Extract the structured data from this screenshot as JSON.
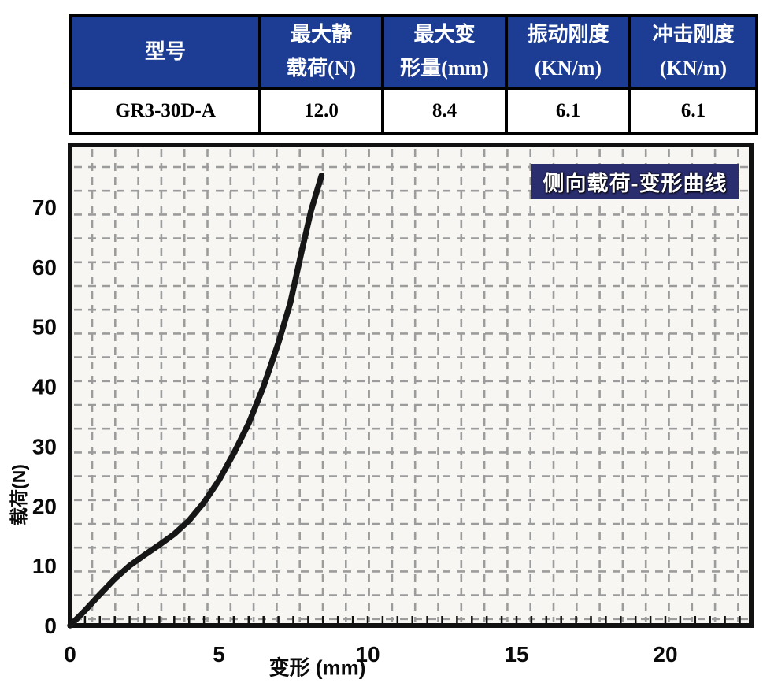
{
  "table": {
    "headers": [
      "型号",
      "最大静\n载荷(N)",
      "最大变\n形量(mm)",
      "振动刚度\n(KN/m)",
      "冲击刚度\n(KN/m)"
    ],
    "row": [
      "GR3-30D-A",
      "12.0",
      "8.4",
      "6.1",
      "6.1"
    ]
  },
  "chart": {
    "badge": "侧向载荷-变形曲线",
    "xlabel": "变形 (mm)",
    "ylabel": "载荷(N)"
  },
  "colors": {
    "table_header_bg": "#1d3d94",
    "table_header_text": "#ffffff",
    "badge_bg": "#2a2d6e",
    "badge_text": "#ffffff",
    "curve": "#161616",
    "grid": "#9c9c9c",
    "plot_bg": "#f7f6f3",
    "border": "#000000"
  },
  "chart_data": {
    "type": "line",
    "title": "侧向载荷-变形曲线",
    "xlabel": "变形 (mm)",
    "ylabel": "载荷(N)",
    "xlim": [
      0,
      22.9
    ],
    "ylim": [
      0,
      80.4
    ],
    "x_ticks": [
      0,
      5,
      10,
      15,
      20
    ],
    "y_ticks": [
      0,
      10,
      20,
      30,
      40,
      50,
      60,
      70
    ],
    "x_minor_tick_step": 0.5,
    "x_minor_tick_max": 22.5,
    "grid": {
      "style": "dashed",
      "aligned_to_ticks": false
    },
    "legend": null,
    "series": [
      {
        "name": "侧向载荷-变形曲线",
        "x": [
          0,
          0.5,
          1.0,
          1.5,
          2.0,
          2.5,
          3.0,
          3.5,
          4.0,
          4.5,
          5.0,
          5.5,
          6.0,
          6.5,
          7.0,
          7.4,
          7.8,
          8.1,
          8.45
        ],
        "y": [
          0,
          2.5,
          5.2,
          7.8,
          10.0,
          11.8,
          13.5,
          15.3,
          17.6,
          20.6,
          24.3,
          28.8,
          33.8,
          40.0,
          47.3,
          54.0,
          63.0,
          69.5,
          75.3
        ]
      }
    ]
  }
}
